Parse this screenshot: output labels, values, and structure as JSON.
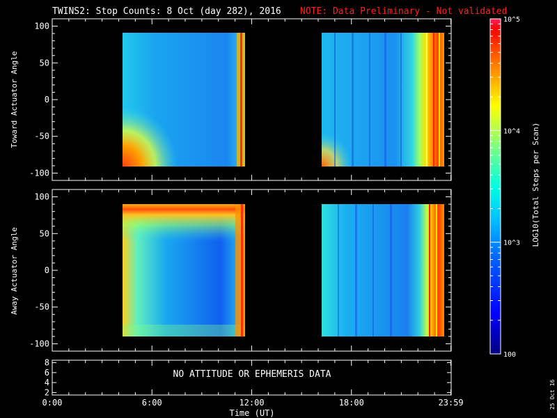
{
  "header": {
    "title": "TWINS2: Stop Counts:  8 Oct (day 282), 2016",
    "note": "NOTE: Data Preliminary - Not validated"
  },
  "stamp": "25 Oct 16",
  "colorbar": {
    "label": "LOG10(Total Steps per Scan)",
    "scale": "log",
    "range": [
      100,
      100000
    ],
    "ticks": [
      "100",
      "10^3",
      "10^4",
      "10^5"
    ],
    "colormap": [
      "#000080",
      "#0000ff",
      "#0060ff",
      "#00c0ff",
      "#00ffe0",
      "#80ff80",
      "#ffff00",
      "#ff8000",
      "#ff0000",
      "#ff2060"
    ]
  },
  "chart_data": [
    {
      "type": "heatmap",
      "name": "panel-toward",
      "ylabel": "Toward Actuator Angle",
      "xlim": [
        0,
        24
      ],
      "ylim": [
        -110,
        110
      ],
      "yticks": [
        100,
        50,
        0,
        -50,
        -100
      ],
      "data_blocks": [
        {
          "x_start_hour": 4.0,
          "x_end_hour": 11.6,
          "angle_range": [
            -88,
            90
          ]
        },
        {
          "x_start_hour": 16.2,
          "x_end_hour": 23.98,
          "angle_range": [
            -88,
            90
          ]
        }
      ]
    },
    {
      "type": "heatmap",
      "name": "panel-away",
      "ylabel": "Away Actuator Angle",
      "xlim": [
        0,
        24
      ],
      "ylim": [
        -110,
        110
      ],
      "yticks": [
        100,
        50,
        0,
        -50,
        -100
      ],
      "data_blocks": [
        {
          "x_start_hour": 4.0,
          "x_end_hour": 11.6,
          "angle_range": [
            -88,
            90
          ]
        },
        {
          "x_start_hour": 16.2,
          "x_end_hour": 23.98,
          "angle_range": [
            -88,
            90
          ]
        }
      ]
    },
    {
      "type": "line",
      "name": "panel-attitude",
      "ylim": [
        1.5,
        8.5
      ],
      "yticks": [
        8,
        6,
        4,
        2
      ],
      "message": "NO ATTITUDE OR EPHEMERIS DATA"
    }
  ],
  "time_axis": {
    "label": "Time (UT)",
    "ticks": [
      {
        "hour": 0,
        "label": "0:00"
      },
      {
        "hour": 6,
        "label": "6:00"
      },
      {
        "hour": 12,
        "label": "12:00"
      },
      {
        "hour": 18,
        "label": "18:00"
      },
      {
        "hour": 23.983,
        "label": "23:59"
      }
    ]
  }
}
